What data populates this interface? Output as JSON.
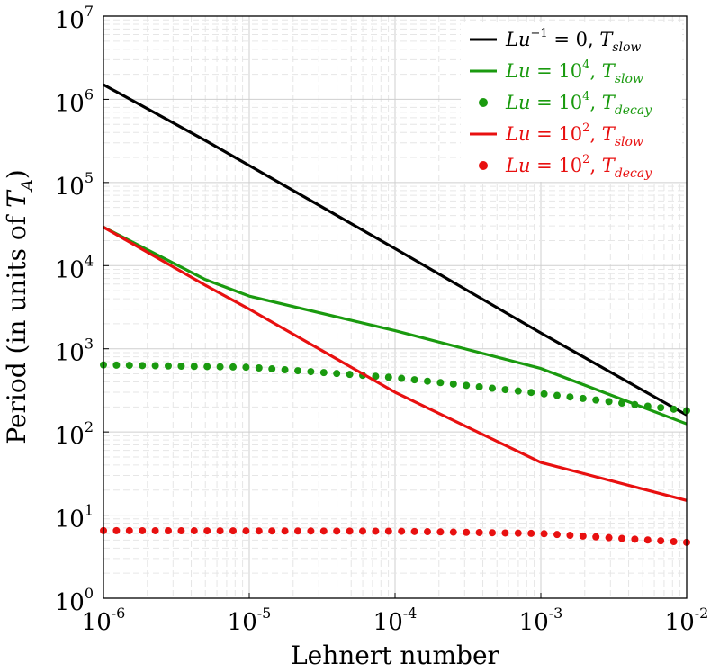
{
  "chart_data": {
    "type": "line",
    "x_scale": "log",
    "y_scale": "log",
    "xlim": [
      1e-06,
      0.01
    ],
    "ylim": [
      1,
      10000000
    ],
    "grid": true,
    "legend_position": "top-right",
    "xlabel": "Lehnert number",
    "ylabel": "Period (in units of T_A)",
    "ylabel_parts": {
      "main": "Period (in units of ",
      "symbol": "T",
      "sub": "A",
      "close": ")"
    },
    "x_ticks": [
      {
        "base": "10",
        "exp": "-6",
        "value": 1e-06
      },
      {
        "base": "10",
        "exp": "-5",
        "value": 1e-05
      },
      {
        "base": "10",
        "exp": "-4",
        "value": 0.0001
      },
      {
        "base": "10",
        "exp": "-3",
        "value": 0.001
      },
      {
        "base": "10",
        "exp": "-2",
        "value": 0.01
      }
    ],
    "y_ticks": [
      {
        "base": "10",
        "exp": "0",
        "value": 1
      },
      {
        "base": "10",
        "exp": "1",
        "value": 10
      },
      {
        "base": "10",
        "exp": "2",
        "value": 100
      },
      {
        "base": "10",
        "exp": "3",
        "value": 1000
      },
      {
        "base": "10",
        "exp": "4",
        "value": 10000
      },
      {
        "base": "10",
        "exp": "5",
        "value": 100000
      },
      {
        "base": "10",
        "exp": "6",
        "value": 1000000
      },
      {
        "base": "10",
        "exp": "7",
        "value": 10000000
      }
    ],
    "series": [
      {
        "name": "Lu^-1 = 0, T_slow",
        "legend": {
          "pre": "Lu",
          "sup": "−1",
          "mid": " = 0, ",
          "sym": "T",
          "sub": "slow"
        },
        "color": "#000000",
        "style": "line",
        "x": [
          1e-06,
          5e-06,
          1e-05,
          0.0001,
          0.001,
          0.01
        ],
        "y": [
          1500000,
          320000,
          160000,
          16000,
          1550,
          160
        ]
      },
      {
        "name": "Lu = 10^4, T_slow",
        "legend": {
          "pre": "Lu",
          "sup": "",
          "mid": " = 10",
          "msup": "4",
          "end": ", ",
          "sym": "T",
          "sub": "slow"
        },
        "color": "#1a9a0f",
        "style": "line",
        "x": [
          1e-06,
          5e-06,
          1e-05,
          0.0001,
          0.001,
          0.01
        ],
        "y": [
          29000,
          6800,
          4300,
          1650,
          580,
          125
        ]
      },
      {
        "name": "Lu = 10^4, T_decay",
        "legend": {
          "pre": "Lu",
          "sup": "",
          "mid": " = 10",
          "msup": "4",
          "end": ", ",
          "sym": "T",
          "sub": "decay"
        },
        "color": "#1a9a0f",
        "style": "dots",
        "x": [
          1e-06,
          1e-05,
          0.0001,
          0.001,
          0.01
        ],
        "y": [
          640,
          600,
          450,
          290,
          180
        ]
      },
      {
        "name": "Lu = 10^2, T_slow",
        "legend": {
          "pre": "Lu",
          "sup": "",
          "mid": " = 10",
          "msup": "2",
          "end": ", ",
          "sym": "T",
          "sub": "slow"
        },
        "color": "#e81010",
        "style": "line",
        "x": [
          1e-06,
          5e-06,
          1e-05,
          0.0001,
          0.001,
          0.01
        ],
        "y": [
          29000,
          5800,
          3000,
          300,
          43,
          15
        ]
      },
      {
        "name": "Lu = 10^2, T_decay",
        "legend": {
          "pre": "Lu",
          "sup": "",
          "mid": " = 10",
          "msup": "2",
          "end": ", ",
          "sym": "T",
          "sub": "decay"
        },
        "color": "#e81010",
        "style": "dots",
        "x": [
          1e-06,
          0.0001,
          0.001,
          0.01
        ],
        "y": [
          6.5,
          6.4,
          6.0,
          4.7
        ]
      }
    ]
  }
}
